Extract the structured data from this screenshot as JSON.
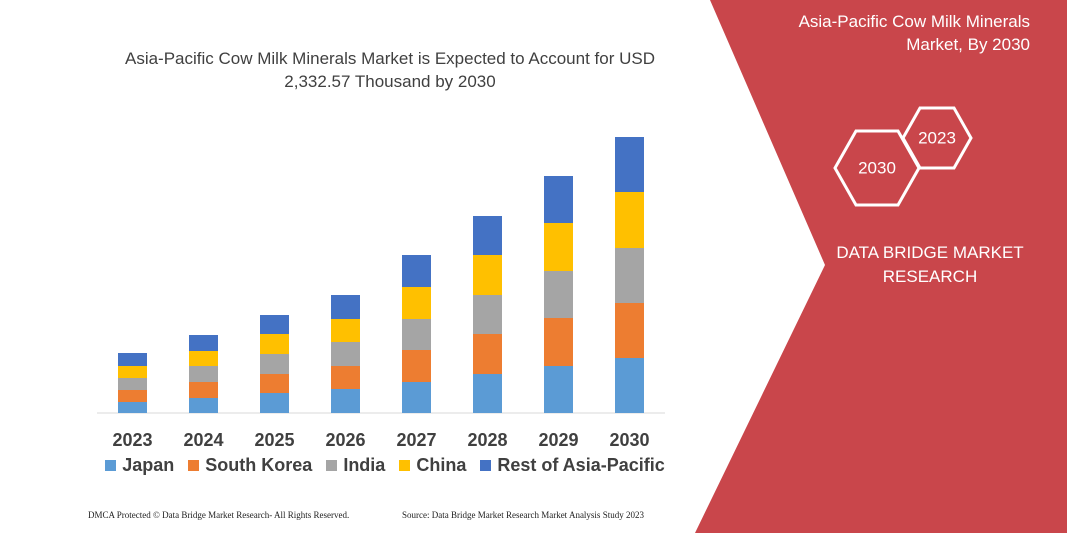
{
  "chart_data": {
    "type": "bar",
    "stacked": true,
    "title": "Asia-Pacific Cow Milk Minerals Market is Expected to Account for USD 2,332.57 Thousand by 2030",
    "categories": [
      "2023",
      "2024",
      "2025",
      "2026",
      "2027",
      "2028",
      "2029",
      "2030"
    ],
    "series": [
      {
        "name": "Japan",
        "color": "#5b9bd5",
        "values": [
          11,
          15,
          20,
          24,
          31,
          39,
          47,
          55
        ]
      },
      {
        "name": "South Korea",
        "color": "#ed7d31",
        "values": [
          12,
          16,
          19,
          23,
          32,
          40,
          48,
          55
        ]
      },
      {
        "name": "India",
        "color": "#a5a5a5",
        "values": [
          12,
          16,
          20,
          24,
          31,
          39,
          47,
          55
        ]
      },
      {
        "name": "China",
        "color": "#ffc000",
        "values": [
          12,
          15,
          20,
          23,
          32,
          40,
          48,
          56
        ]
      },
      {
        "name": "Rest of Asia-Pacific",
        "color": "#4472c4",
        "values": [
          13,
          16,
          19,
          24,
          32,
          39,
          47,
          55
        ]
      }
    ],
    "ylim": [
      0,
      300
    ]
  },
  "panel": {
    "title": "Asia-Pacific Cow Milk Minerals Market, By 2030",
    "hexagons": [
      "2023",
      "2030"
    ],
    "brand": "DATA BRIDGE MARKET RESEARCH"
  },
  "footer": {
    "left": "DMCA Protected © Data Bridge Market Research-  All Rights Reserved.",
    "right": "Source: Data Bridge Market Research  Market Analysis Study 2023"
  }
}
